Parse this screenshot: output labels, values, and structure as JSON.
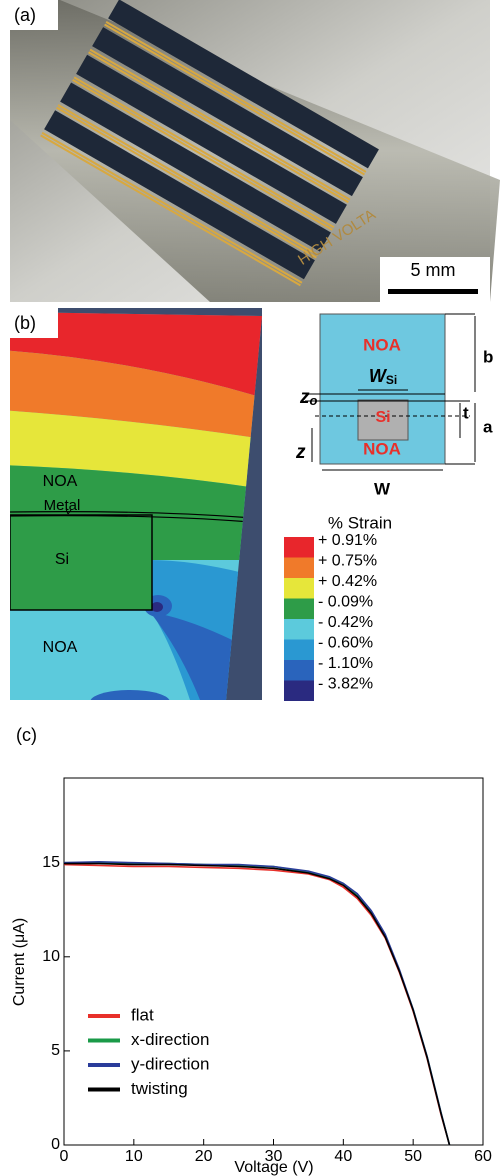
{
  "panel_a": {
    "label": "(a)",
    "scale_bar": "5 mm",
    "print": "HIGH VOLTA"
  },
  "panel_b": {
    "label": "(b)",
    "sim_labels": {
      "noa_top": "NOA",
      "metal": "Metal",
      "si": "Si",
      "noa_bottom": "NOA"
    },
    "schematic": {
      "noa_top": "NOA",
      "w_si": "W",
      "w_si_sub": "Si",
      "z_o": "z",
      "z_o_sub": "o",
      "si": "Si",
      "t": "t",
      "noa_bottom": "NOA",
      "z": "z",
      "b": "b",
      "a": "a",
      "w": "W"
    },
    "strain_legend": {
      "title": "% Strain",
      "items": [
        {
          "label": "+ 0.91%",
          "color": "#e8262c"
        },
        {
          "label": "+ 0.75%",
          "color": "#f07a2a"
        },
        {
          "label": "+ 0.42%",
          "color": "#e6e63a"
        },
        {
          "label": "- 0.09%",
          "color": "#2e9c48"
        },
        {
          "label": "- 0.42%",
          "color": "#5ccadc"
        },
        {
          "label": "- 0.60%",
          "color": "#2a98d2"
        },
        {
          "label": "- 1.10%",
          "color": "#2a64bc"
        },
        {
          "label": "- 3.82%",
          "color": "#2a2a80"
        }
      ]
    }
  },
  "chart_data": {
    "type": "line",
    "panel_label": "(c)",
    "xlabel": "Voltage (V)",
    "ylabel": "Current (μA)",
    "x": [
      0,
      5,
      10,
      15,
      20,
      25,
      30,
      35,
      38,
      40,
      42,
      44,
      46,
      48,
      50,
      52,
      54,
      55.2
    ],
    "series": [
      {
        "name": "flat",
        "color": "#e8302a",
        "values": [
          14.9,
          14.85,
          14.8,
          14.8,
          14.75,
          14.7,
          14.6,
          14.4,
          14.1,
          13.7,
          13.1,
          12.2,
          11.0,
          9.2,
          7.1,
          4.6,
          1.6,
          0
        ]
      },
      {
        "name": "x-direction",
        "color": "#1a9a48",
        "values": [
          15.0,
          15.0,
          14.95,
          14.95,
          14.9,
          14.85,
          14.8,
          14.5,
          14.2,
          13.9,
          13.3,
          12.4,
          11.1,
          9.3,
          7.2,
          4.7,
          1.7,
          0
        ]
      },
      {
        "name": "y-direction",
        "color": "#2a3c9a",
        "values": [
          15.0,
          15.05,
          15.0,
          14.95,
          14.9,
          14.9,
          14.8,
          14.55,
          14.25,
          13.9,
          13.35,
          12.45,
          11.2,
          9.35,
          7.2,
          4.7,
          1.7,
          0
        ]
      },
      {
        "name": "twisting",
        "color": "#000000",
        "values": [
          14.95,
          14.95,
          14.9,
          14.9,
          14.85,
          14.8,
          14.7,
          14.45,
          14.15,
          13.8,
          13.2,
          12.3,
          11.05,
          9.25,
          7.15,
          4.65,
          1.65,
          0
        ]
      }
    ],
    "xlim": [
      0,
      60
    ],
    "ylim": [
      0,
      19.5
    ],
    "xticks": [
      0,
      10,
      20,
      30,
      40,
      50,
      60
    ],
    "yticks": [
      0,
      5,
      10,
      15
    ],
    "legend": "left"
  }
}
